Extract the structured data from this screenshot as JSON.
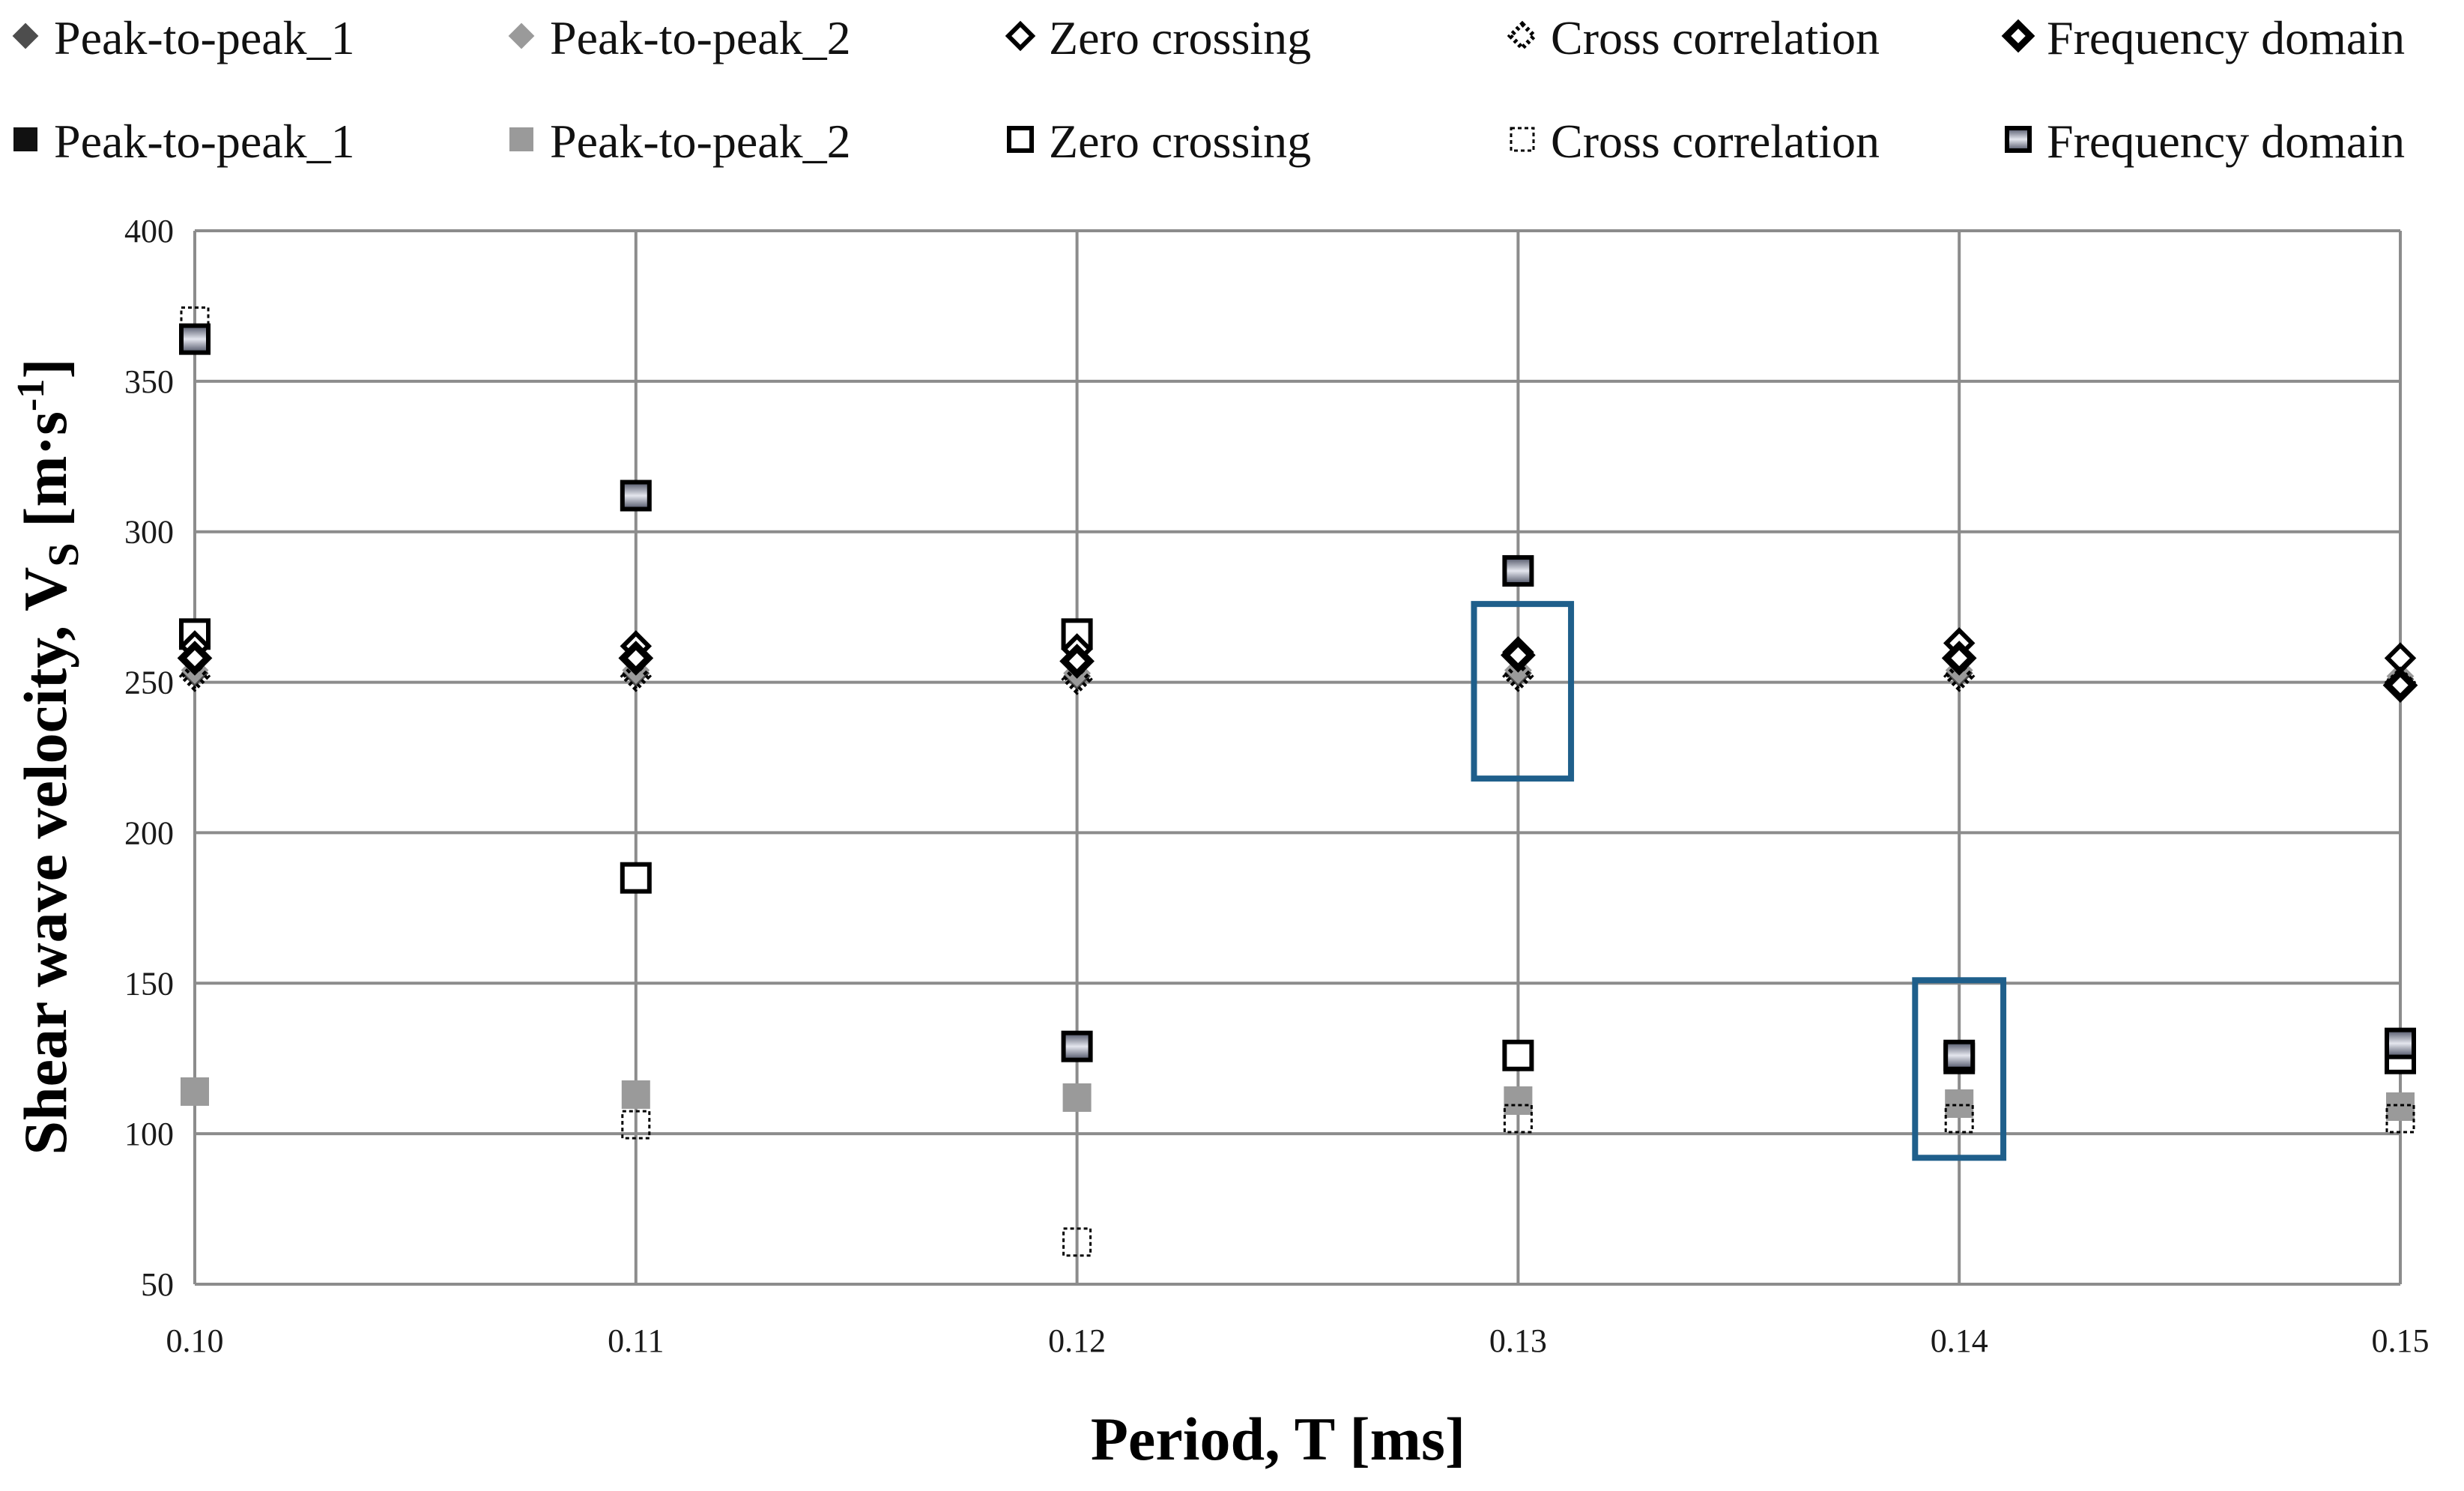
{
  "chart_data": {
    "type": "scatter",
    "title": "",
    "xlabel": "Period, T [ms]",
    "ylabel": {
      "main": "Shear wave velocity, V",
      "subscript": "S",
      "unit_open": " [m·s",
      "unit_sup": "-1",
      "unit_close": "]"
    },
    "x_ticks": [
      "0.10",
      "0.11",
      "0.12",
      "0.13",
      "0.14",
      "0.15"
    ],
    "y_ticks": [
      "50",
      "100",
      "150",
      "200",
      "250",
      "300",
      "350",
      "400"
    ],
    "xlim": [
      0.1,
      0.15
    ],
    "ylim": [
      50,
      400
    ],
    "grid": true,
    "legend_position": "top",
    "series": [
      {
        "name": "Peak-to-peak_1",
        "marker": "diamond",
        "style": "filled-dark",
        "x": [
          0.1,
          0.11,
          0.12,
          0.13,
          0.14,
          0.15
        ],
        "y": [
          253,
          253,
          252,
          253,
          253,
          251
        ]
      },
      {
        "name": "Peak-to-peak_2",
        "marker": "diamond",
        "style": "filled-gray",
        "x": [
          0.1,
          0.11,
          0.12,
          0.13,
          0.14,
          0.15
        ],
        "y": [
          254,
          254,
          253,
          254,
          254,
          252
        ]
      },
      {
        "name": "Zero crossing",
        "marker": "diamond",
        "style": "open",
        "x": [
          0.1,
          0.11,
          0.12,
          0.13,
          0.14,
          0.15
        ],
        "y": [
          262,
          262,
          261,
          260,
          263,
          258
        ]
      },
      {
        "name": "Cross correlation",
        "marker": "diamond",
        "style": "dotted",
        "x": [
          0.1,
          0.11,
          0.12,
          0.13,
          0.14,
          0.15
        ],
        "y": [
          252,
          252,
          251,
          252,
          252,
          250
        ]
      },
      {
        "name": "Frequency domain",
        "marker": "diamond",
        "style": "bold",
        "x": [
          0.1,
          0.11,
          0.12,
          0.13,
          0.14,
          0.15
        ],
        "y": [
          258,
          258,
          257,
          259,
          258,
          249
        ]
      },
      {
        "name": "Peak-to-peak_1",
        "marker": "square",
        "style": "filled-dark",
        "x": [
          0.1,
          0.11,
          0.12,
          0.13,
          0.14,
          0.15
        ],
        "y": [
          364,
          312,
          129,
          287,
          126,
          130
        ]
      },
      {
        "name": "Peak-to-peak_2",
        "marker": "square",
        "style": "filled-gray",
        "x": [
          0.1,
          0.11,
          0.12,
          0.13,
          0.14,
          0.15
        ],
        "y": [
          114,
          113,
          112,
          111,
          110,
          109
        ]
      },
      {
        "name": "Zero crossing",
        "marker": "square",
        "style": "open",
        "x": [
          0.1,
          0.11,
          0.12,
          0.13,
          0.14,
          0.15
        ],
        "y": [
          266,
          185,
          266,
          126,
          125,
          125
        ]
      },
      {
        "name": "Cross correlation",
        "marker": "square",
        "style": "dotted",
        "x": [
          0.1,
          0.11,
          0.12,
          0.13,
          0.14,
          0.15
        ],
        "y": [
          370,
          103,
          64,
          105,
          105,
          105
        ]
      },
      {
        "name": "Frequency domain",
        "marker": "square",
        "style": "framed-gradient",
        "x": [
          0.1,
          0.11,
          0.12,
          0.13,
          0.14,
          0.15
        ],
        "y": [
          364,
          312,
          129,
          287,
          126,
          130
        ]
      }
    ],
    "annotations": [
      {
        "type": "highlight-box",
        "x_range": [
          0.129,
          0.1312
        ],
        "y_range": [
          218,
          276
        ],
        "color": "#1f5f8b"
      },
      {
        "type": "highlight-box",
        "x_range": [
          0.139,
          0.141
        ],
        "y_range": [
          92,
          151
        ],
        "color": "#1f5f8b"
      }
    ]
  }
}
